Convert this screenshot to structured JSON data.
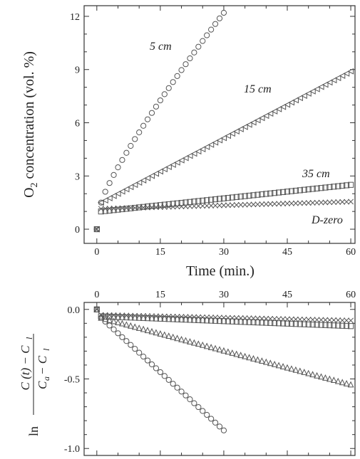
{
  "chart_data": [
    {
      "type": "scatter",
      "xlabel": "Time (min.)",
      "ylabel": "O2 concentration (vol. %)",
      "xlim": [
        -3,
        61
      ],
      "ylim": [
        -0.8,
        12.6
      ],
      "xticks": [
        0,
        15,
        30,
        45,
        60
      ],
      "yticks": [
        0,
        3,
        6,
        9,
        12
      ],
      "grid": false,
      "series": [
        {
          "name": "5 cm",
          "marker": "circle",
          "x0": 1,
          "x1": 30,
          "y0": 1.5,
          "y1": 12.2,
          "curve": "concave",
          "anchor": 0
        },
        {
          "name": "15 cm",
          "marker": "triangle-left",
          "x0": 1,
          "x1": 60,
          "y0": 1.5,
          "y1": 8.9,
          "curve": "linear",
          "anchor": 0
        },
        {
          "name": "35 cm",
          "marker": "square",
          "x0": 1,
          "x1": 60,
          "y0": 1.0,
          "y1": 2.5,
          "curve": "linear",
          "anchor": 0
        },
        {
          "name": "D-zero",
          "marker": "x",
          "x0": 1,
          "x1": 60,
          "y0": 1.15,
          "y1": 1.55,
          "curve": "linear",
          "anchor": 0
        }
      ],
      "annotations": [
        "5 cm",
        "15 cm",
        "35 cm",
        "D-zero"
      ]
    },
    {
      "type": "scatter",
      "xlabel": "",
      "ylabel": "ln (C(t) − C_l)/(C_a − C_l)",
      "ylabel_parts": {
        "ln": "ln",
        "numerator": "C (t) − C",
        "denominator": "C",
        "sub_a": "a",
        "sub_minus": " − C",
        "sub_l": "l"
      },
      "xlim": [
        -3,
        61
      ],
      "ylim": [
        -1.05,
        0.05
      ],
      "xticks": [
        0,
        15,
        30,
        45,
        60
      ],
      "yticks": [
        0.0,
        -0.5,
        -1.0
      ],
      "ytick_labels": [
        "0.0",
        "-0.5",
        "-1.0"
      ],
      "grid": false,
      "series": [
        {
          "name": "5 cm",
          "marker": "circle",
          "x0": 1,
          "x1": 30,
          "y0": -0.06,
          "y1": -0.87,
          "curve": "linear",
          "anchor": 0
        },
        {
          "name": "15 cm",
          "marker": "triangle-up",
          "x0": 1,
          "x1": 60,
          "y0": -0.06,
          "y1": -0.54,
          "curve": "linear",
          "anchor": 0
        },
        {
          "name": "35 cm",
          "marker": "square",
          "x0": 1,
          "x1": 60,
          "y0": -0.05,
          "y1": -0.12,
          "curve": "linear",
          "anchor": 0
        },
        {
          "name": "D-zero",
          "marker": "x",
          "x0": 1,
          "x1": 60,
          "y0": -0.04,
          "y1": -0.08,
          "curve": "linear",
          "anchor": 0
        }
      ]
    }
  ]
}
